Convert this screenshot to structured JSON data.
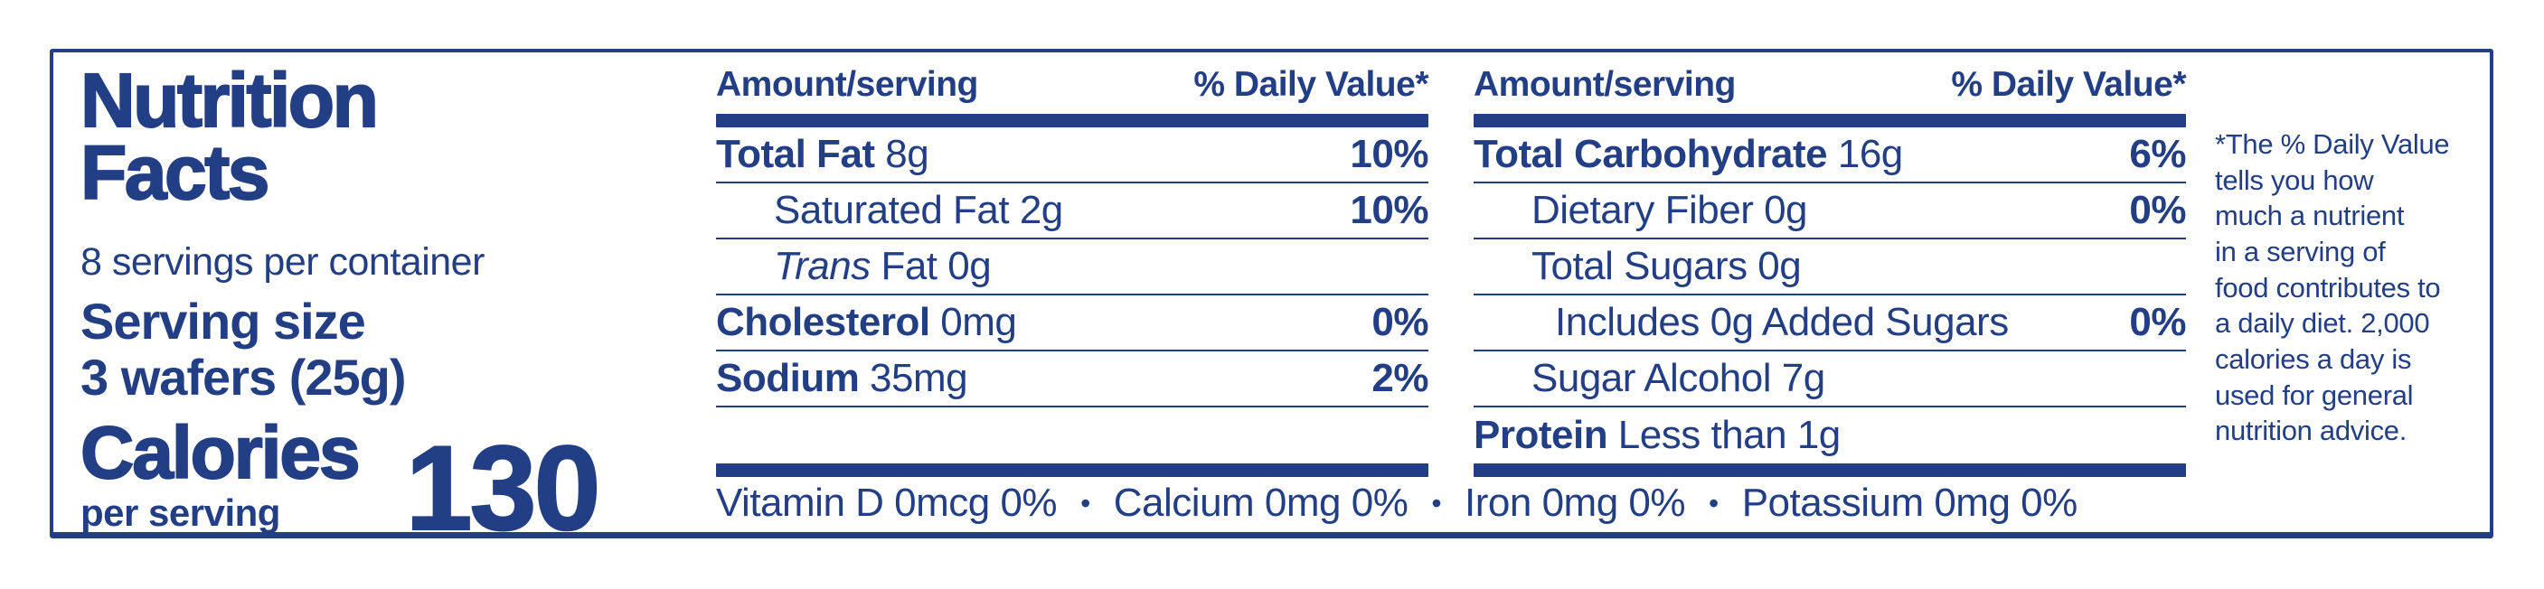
{
  "colors": {
    "navy": "#223e85",
    "background": "#ffffff"
  },
  "panel": {
    "title_line1": "Nutrition",
    "title_line2": "Facts",
    "servings_per_container": "8 servings per container",
    "serving_size_label": "Serving size",
    "serving_size_value": "3 wafers (25g)",
    "calories_label": "Calories",
    "calories_sublabel": "per serving",
    "calories_value": "130"
  },
  "columns": [
    {
      "header_left": "Amount/serving",
      "header_right": "% Daily Value*",
      "rows": [
        {
          "bold": "Total Fat",
          "text": " 8g",
          "dv": "10%"
        },
        {
          "text": "Saturated Fat 2g",
          "dv": "10%"
        },
        {
          "italic": "Trans",
          "text": " Fat 0g",
          "dv": ""
        },
        {
          "bold": "Cholesterol",
          "text": " 0mg",
          "dv": "0%"
        },
        {
          "bold": "Sodium",
          "text": " 35mg",
          "dv": "2%"
        }
      ]
    },
    {
      "header_left": "Amount/serving",
      "header_right": "% Daily Value*",
      "rows": [
        {
          "bold": "Total Carbohydrate",
          "text": " 16g",
          "dv": "6%"
        },
        {
          "text": "Dietary Fiber 0g",
          "dv": "0%"
        },
        {
          "text": "Total Sugars 0g",
          "dv": ""
        },
        {
          "text": "Includes 0g Added Sugars",
          "dv": "0%"
        },
        {
          "text": "Sugar Alcohol 7g",
          "dv": ""
        },
        {
          "bold": "Protein",
          "text": " Less than 1g",
          "dv": ""
        }
      ]
    }
  ],
  "micronutrients": {
    "separator": "•",
    "items": [
      "Vitamin D 0mcg 0%",
      "Calcium 0mg 0%",
      "Iron 0mg 0%",
      "Potassium 0mg 0%"
    ]
  },
  "footnote": {
    "lines": [
      "*The % Daily Value",
      "tells you how",
      "much a nutrient",
      "in a serving of",
      "food contributes to",
      "a daily diet. 2,000",
      "calories a day is",
      "used for general",
      "nutrition advice."
    ]
  }
}
